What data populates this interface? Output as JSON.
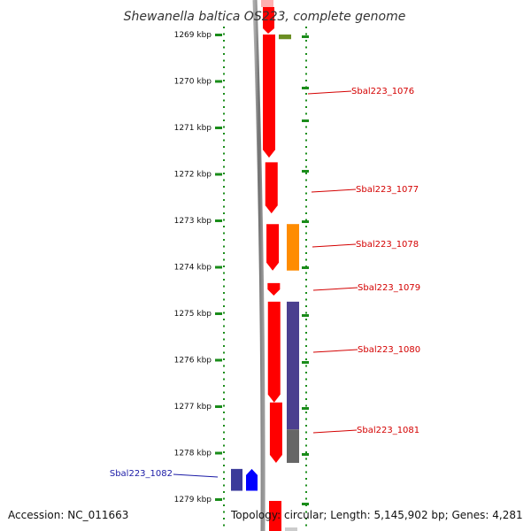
{
  "title": "Shewanella baltica OS223, complete genome",
  "scale": {
    "unit": "kbp",
    "ticks": [
      "1269 kbp",
      "1270 kbp",
      "1271 kbp",
      "1272 kbp",
      "1273 kbp",
      "1274 kbp",
      "1275 kbp",
      "1276 kbp",
      "1277 kbp",
      "1278 kbp",
      "1279 kbp"
    ]
  },
  "genes": [
    {
      "id": "Sbal223_1076",
      "track": "forward",
      "start_kbp": 1269.0,
      "end_kbp": 1271.65,
      "color": "#ff0000"
    },
    {
      "id": "Sbal223_1077",
      "track": "forward",
      "start_kbp": 1271.75,
      "end_kbp": 1272.85,
      "color": "#ff0000"
    },
    {
      "id": "Sbal223_1078",
      "track": "forward",
      "start_kbp": 1273.08,
      "end_kbp": 1274.08,
      "color": "#ff0000"
    },
    {
      "id": "Sbal223_1079",
      "track": "forward",
      "start_kbp": 1274.35,
      "end_kbp": 1274.62,
      "color": "#ff0000"
    },
    {
      "id": "Sbal223_1080",
      "track": "forward",
      "start_kbp": 1274.75,
      "end_kbp": 1276.92,
      "color": "#ff0000"
    },
    {
      "id": "Sbal223_1081",
      "track": "forward",
      "start_kbp": 1276.92,
      "end_kbp": 1278.22,
      "color": "#ff0000"
    },
    {
      "id": "Sbal223_1082",
      "track": "reverse",
      "start_kbp": 1278.35,
      "end_kbp": 1278.82,
      "color": "#0000ff"
    }
  ],
  "annotation_blocks": [
    {
      "start_kbp": 1269.0,
      "end_kbp": 1269.1,
      "color": "#6b8e23"
    },
    {
      "start_kbp": 1273.08,
      "end_kbp": 1274.08,
      "color": "#ff8c00"
    },
    {
      "start_kbp": 1274.75,
      "end_kbp": 1277.5,
      "color": "#4b3f8f"
    },
    {
      "start_kbp": 1277.5,
      "end_kbp": 1278.22,
      "color": "#666666"
    },
    {
      "start_kbp": 1278.35,
      "end_kbp": 1278.82,
      "color": "#3b3b9a"
    }
  ],
  "colors": {
    "forward_gene": "#ff0000",
    "reverse_gene": "#0000ff",
    "backbone": "#808080",
    "tick_marks": "#1a8c1a",
    "label_red": "#d40000",
    "label_blue": "#1a1aa6"
  },
  "footer": {
    "accession": "Accession: NC_011663",
    "summary": "Topology: circular; Length: 5,145,902 bp; Genes: 4,281"
  }
}
